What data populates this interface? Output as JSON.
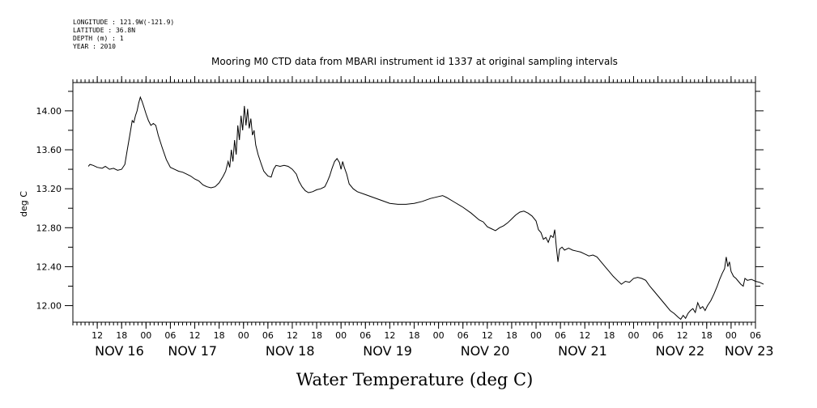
{
  "metadata": [
    {
      "key": "LONGITUDE",
      "value": "121.9W(-121.9)"
    },
    {
      "key": "LATITUDE",
      "value": "36.8N"
    },
    {
      "key": "DEPTH (m)",
      "value": "1"
    },
    {
      "key": "YEAR",
      "value": "2010"
    }
  ],
  "chart_data": {
    "type": "line",
    "title": "Mooring M0 CTD data from MBARI instrument id 1337 at original sampling intervals",
    "xlabel": "Water Temperature (deg C)",
    "ylabel": "deg C",
    "x_units": "hours since NOV 16 00:00 (2010)",
    "xlim": [
      -18,
      150
    ],
    "ylim": [
      11.83,
      14.29
    ],
    "yticks": [
      12.0,
      12.4,
      12.8,
      13.2,
      13.6,
      14.0
    ],
    "ytick_labels": [
      "12.00",
      "12.40",
      "12.80",
      "13.20",
      "13.60",
      "14.00"
    ],
    "hour_ticks": [
      {
        "x": -12,
        "label": "12"
      },
      {
        "x": -6,
        "label": "18"
      },
      {
        "x": 0,
        "label": "00"
      },
      {
        "x": 6,
        "label": "06"
      },
      {
        "x": 12,
        "label": "12"
      },
      {
        "x": 18,
        "label": "18"
      },
      {
        "x": 24,
        "label": "00"
      },
      {
        "x": 30,
        "label": "06"
      },
      {
        "x": 36,
        "label": "12"
      },
      {
        "x": 42,
        "label": "18"
      },
      {
        "x": 48,
        "label": "00"
      },
      {
        "x": 54,
        "label": "06"
      },
      {
        "x": 60,
        "label": "12"
      },
      {
        "x": 66,
        "label": "18"
      },
      {
        "x": 72,
        "label": "00"
      },
      {
        "x": 78,
        "label": "06"
      },
      {
        "x": 84,
        "label": "12"
      },
      {
        "x": 90,
        "label": "18"
      },
      {
        "x": 96,
        "label": "00"
      },
      {
        "x": 102,
        "label": "06"
      },
      {
        "x": 108,
        "label": "12"
      },
      {
        "x": 114,
        "label": "18"
      },
      {
        "x": 120,
        "label": "00"
      },
      {
        "x": 126,
        "label": "06"
      },
      {
        "x": 132,
        "label": "12"
      },
      {
        "x": 138,
        "label": "18"
      },
      {
        "x": 144,
        "label": "00"
      },
      {
        "x": 150,
        "label": "06"
      }
    ],
    "day_labels": [
      {
        "x": -12,
        "label": "NOV 16"
      },
      {
        "x": 6,
        "label": "NOV 17"
      },
      {
        "x": 30,
        "label": "NOV 18"
      },
      {
        "x": 54,
        "label": "NOV 19"
      },
      {
        "x": 78,
        "label": "NOV 20"
      },
      {
        "x": 102,
        "label": "NOV 21"
      },
      {
        "x": 126,
        "label": "NOV 22"
      },
      {
        "x": 143,
        "label": "NOV 23"
      }
    ],
    "series": [
      {
        "values": [
          [
            -14.2,
            13.43
          ],
          [
            -13.8,
            13.45
          ],
          [
            -13,
            13.44
          ],
          [
            -12,
            13.42
          ],
          [
            -10.8,
            13.41
          ],
          [
            -10,
            13.43
          ],
          [
            -9,
            13.4
          ],
          [
            -8,
            13.41
          ],
          [
            -7,
            13.39
          ],
          [
            -6,
            13.4
          ],
          [
            -5.2,
            13.45
          ],
          [
            -4.6,
            13.6
          ],
          [
            -4,
            13.75
          ],
          [
            -3.4,
            13.9
          ],
          [
            -3,
            13.88
          ],
          [
            -2.6,
            13.95
          ],
          [
            -2.2,
            14.0
          ],
          [
            -1.8,
            14.08
          ],
          [
            -1.4,
            14.14
          ],
          [
            -1.0,
            14.1
          ],
          [
            -0.6,
            14.05
          ],
          [
            0,
            13.97
          ],
          [
            0.6,
            13.9
          ],
          [
            1.2,
            13.85
          ],
          [
            1.8,
            13.87
          ],
          [
            2.4,
            13.85
          ],
          [
            3,
            13.75
          ],
          [
            4,
            13.62
          ],
          [
            5,
            13.5
          ],
          [
            6,
            13.42
          ],
          [
            7,
            13.4
          ],
          [
            8,
            13.38
          ],
          [
            9,
            13.37
          ],
          [
            10,
            13.35
          ],
          [
            11,
            13.33
          ],
          [
            12,
            13.3
          ],
          [
            13,
            13.28
          ],
          [
            14,
            13.24
          ],
          [
            15,
            13.22
          ],
          [
            16,
            13.21
          ],
          [
            17,
            13.22
          ],
          [
            18,
            13.26
          ],
          [
            19,
            13.33
          ],
          [
            19.6,
            13.38
          ],
          [
            20.2,
            13.48
          ],
          [
            20.6,
            13.42
          ],
          [
            21,
            13.6
          ],
          [
            21.4,
            13.48
          ],
          [
            21.8,
            13.7
          ],
          [
            22.2,
            13.55
          ],
          [
            22.6,
            13.85
          ],
          [
            23,
            13.7
          ],
          [
            23.4,
            13.95
          ],
          [
            23.8,
            13.8
          ],
          [
            24.2,
            14.05
          ],
          [
            24.6,
            13.85
          ],
          [
            25,
            14.02
          ],
          [
            25.4,
            13.82
          ],
          [
            25.8,
            13.92
          ],
          [
            26.2,
            13.75
          ],
          [
            26.6,
            13.8
          ],
          [
            27,
            13.65
          ],
          [
            27.6,
            13.55
          ],
          [
            28.4,
            13.45
          ],
          [
            29,
            13.38
          ],
          [
            30,
            13.33
          ],
          [
            30.8,
            13.32
          ],
          [
            31.4,
            13.4
          ],
          [
            32,
            13.44
          ],
          [
            33,
            13.43
          ],
          [
            34,
            13.44
          ],
          [
            35,
            13.43
          ],
          [
            36,
            13.4
          ],
          [
            37,
            13.35
          ],
          [
            37.6,
            13.28
          ],
          [
            38.4,
            13.22
          ],
          [
            39.2,
            13.18
          ],
          [
            40,
            13.16
          ],
          [
            41,
            13.17
          ],
          [
            42,
            13.19
          ],
          [
            43,
            13.2
          ],
          [
            44,
            13.22
          ],
          [
            44.6,
            13.27
          ],
          [
            45.2,
            13.33
          ],
          [
            45.8,
            13.41
          ],
          [
            46.4,
            13.48
          ],
          [
            47,
            13.51
          ],
          [
            47.6,
            13.47
          ],
          [
            48,
            13.4
          ],
          [
            48.4,
            13.48
          ],
          [
            48.8,
            13.42
          ],
          [
            49.4,
            13.35
          ],
          [
            50,
            13.25
          ],
          [
            51,
            13.2
          ],
          [
            52,
            13.17
          ],
          [
            54,
            13.14
          ],
          [
            56,
            13.11
          ],
          [
            58,
            13.08
          ],
          [
            60,
            13.05
          ],
          [
            62,
            13.04
          ],
          [
            64,
            13.04
          ],
          [
            66,
            13.05
          ],
          [
            68,
            13.07
          ],
          [
            70,
            13.1
          ],
          [
            72,
            13.12
          ],
          [
            73,
            13.13
          ],
          [
            74,
            13.11
          ],
          [
            76,
            13.06
          ],
          [
            78,
            13.01
          ],
          [
            80,
            12.95
          ],
          [
            82,
            12.88
          ],
          [
            83,
            12.86
          ],
          [
            84,
            12.81
          ],
          [
            85,
            12.79
          ],
          [
            86,
            12.77
          ],
          [
            87,
            12.8
          ],
          [
            88,
            12.82
          ],
          [
            89,
            12.85
          ],
          [
            90,
            12.89
          ],
          [
            91,
            12.93
          ],
          [
            92,
            12.96
          ],
          [
            93,
            12.97
          ],
          [
            94,
            12.95
          ],
          [
            95,
            12.92
          ],
          [
            96,
            12.87
          ],
          [
            96.6,
            12.78
          ],
          [
            97.2,
            12.75
          ],
          [
            97.8,
            12.68
          ],
          [
            98.4,
            12.7
          ],
          [
            99,
            12.65
          ],
          [
            99.6,
            12.72
          ],
          [
            100.2,
            12.7
          ],
          [
            100.6,
            12.78
          ],
          [
            101,
            12.6
          ],
          [
            101.4,
            12.45
          ],
          [
            101.8,
            12.58
          ],
          [
            102.4,
            12.6
          ],
          [
            103,
            12.57
          ],
          [
            104,
            12.59
          ],
          [
            105,
            12.57
          ],
          [
            106,
            12.56
          ],
          [
            107,
            12.55
          ],
          [
            108,
            12.53
          ],
          [
            109,
            12.51
          ],
          [
            110,
            12.52
          ],
          [
            111,
            12.5
          ],
          [
            112,
            12.45
          ],
          [
            113,
            12.4
          ],
          [
            114,
            12.35
          ],
          [
            115,
            12.3
          ],
          [
            116,
            12.26
          ],
          [
            117,
            12.22
          ],
          [
            118,
            12.25
          ],
          [
            119,
            12.24
          ],
          [
            120,
            12.28
          ],
          [
            121,
            12.29
          ],
          [
            122,
            12.28
          ],
          [
            123,
            12.26
          ],
          [
            124,
            12.2
          ],
          [
            125,
            12.15
          ],
          [
            126,
            12.1
          ],
          [
            127,
            12.05
          ],
          [
            128,
            12.0
          ],
          [
            129,
            11.95
          ],
          [
            130,
            11.92
          ],
          [
            131,
            11.88
          ],
          [
            131.6,
            11.86
          ],
          [
            132.2,
            11.9
          ],
          [
            132.8,
            11.87
          ],
          [
            133.4,
            11.92
          ],
          [
            134,
            11.95
          ],
          [
            134.6,
            11.97
          ],
          [
            135.2,
            11.93
          ],
          [
            135.8,
            12.03
          ],
          [
            136.4,
            11.97
          ],
          [
            137,
            11.99
          ],
          [
            137.6,
            11.95
          ],
          [
            138.2,
            12.0
          ],
          [
            139,
            12.05
          ],
          [
            139.8,
            12.12
          ],
          [
            140.6,
            12.2
          ],
          [
            141.2,
            12.27
          ],
          [
            141.8,
            12.33
          ],
          [
            142.4,
            12.38
          ],
          [
            142.8,
            12.5
          ],
          [
            143.2,
            12.4
          ],
          [
            143.6,
            12.45
          ],
          [
            144,
            12.35
          ],
          [
            144.6,
            12.3
          ],
          [
            145.2,
            12.28
          ],
          [
            145.8,
            12.25
          ],
          [
            146.4,
            12.22
          ],
          [
            147,
            12.2
          ],
          [
            147.4,
            12.28
          ],
          [
            148,
            12.26
          ],
          [
            149,
            12.27
          ],
          [
            150,
            12.25
          ],
          [
            151,
            12.24
          ],
          [
            152,
            12.22
          ]
        ]
      }
    ]
  }
}
